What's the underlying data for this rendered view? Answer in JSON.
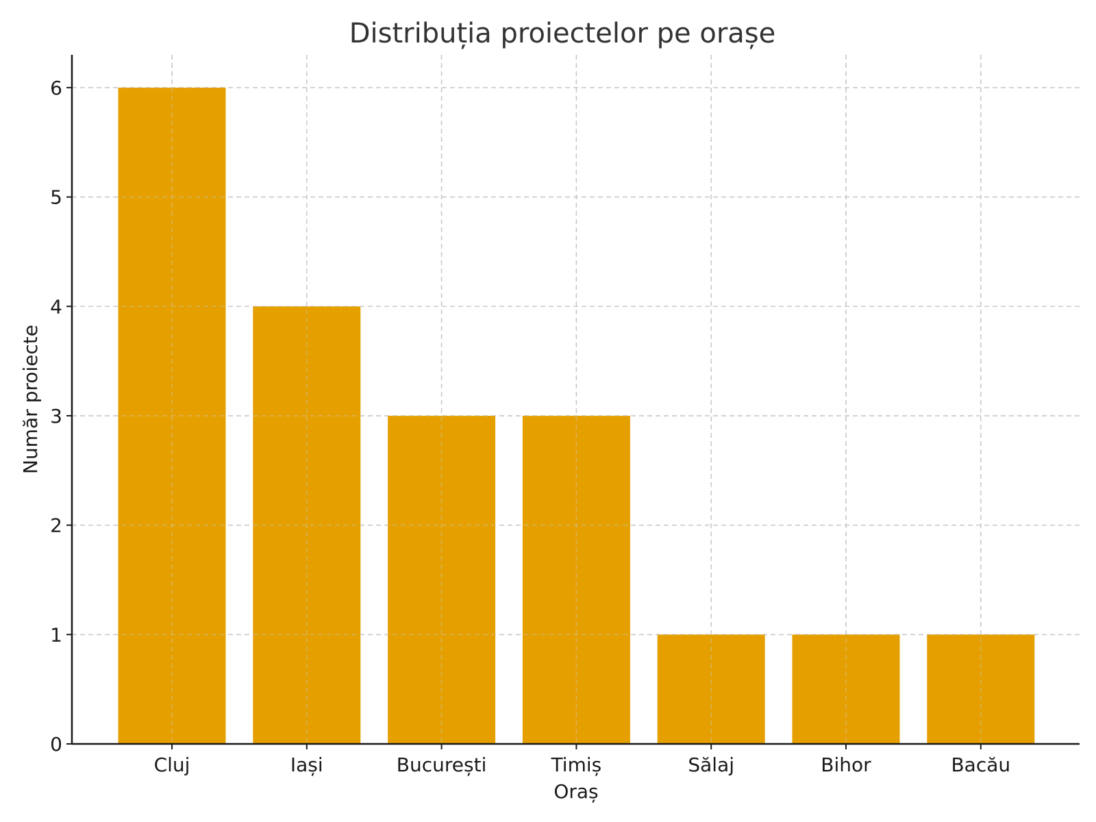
{
  "chart_data": {
    "type": "bar",
    "title": "Distribuția proiectelor pe orașe",
    "xlabel": "Oraș",
    "ylabel": "Număr proiecte",
    "categories": [
      "Cluj",
      "Iași",
      "București",
      "Timiș",
      "Sălaj",
      "Bihor",
      "Bacău"
    ],
    "values": [
      6,
      4,
      3,
      3,
      1,
      1,
      1
    ],
    "ylim": [
      0,
      6.3
    ],
    "yticks": [
      0,
      1,
      2,
      3,
      4,
      5,
      6
    ],
    "grid": true,
    "bar_color": "#E5A000"
  }
}
